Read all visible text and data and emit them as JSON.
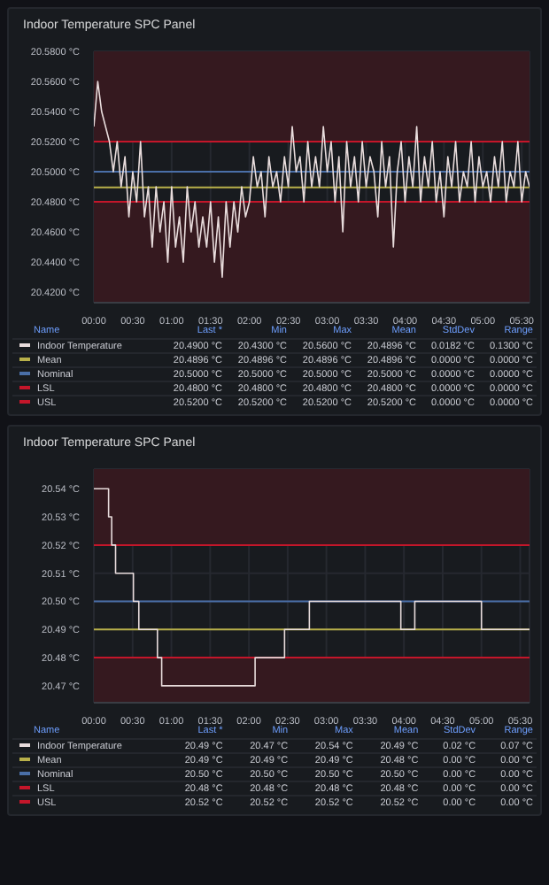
{
  "chart_data": [
    {
      "type": "line",
      "title": "Indoor Temperature SPC Panel",
      "xlim": [
        0,
        5.6
      ],
      "ylim": [
        20.413,
        20.58
      ],
      "xticks": [
        {
          "value": 0,
          "label": "00:00"
        },
        {
          "value": 0.5,
          "label": "00:30"
        },
        {
          "value": 1,
          "label": "01:00"
        },
        {
          "value": 1.5,
          "label": "01:30"
        },
        {
          "value": 2,
          "label": "02:00"
        },
        {
          "value": 2.5,
          "label": "02:30"
        },
        {
          "value": 3,
          "label": "03:00"
        },
        {
          "value": 3.5,
          "label": "03:30"
        },
        {
          "value": 4,
          "label": "04:00"
        },
        {
          "value": 4.5,
          "label": "04:30"
        },
        {
          "value": 5,
          "label": "05:00"
        },
        {
          "value": 5.5,
          "label": "05:30"
        }
      ],
      "yticks": [
        {
          "value": 20.42,
          "label": "20.4200 °C"
        },
        {
          "value": 20.44,
          "label": "20.4400 °C"
        },
        {
          "value": 20.46,
          "label": "20.4600 °C"
        },
        {
          "value": 20.48,
          "label": "20.4800 °C"
        },
        {
          "value": 20.5,
          "label": "20.5000 °C"
        },
        {
          "value": 20.52,
          "label": "20.5200 °C"
        },
        {
          "value": 20.54,
          "label": "20.5400 °C"
        },
        {
          "value": 20.56,
          "label": "20.5600 °C"
        },
        {
          "value": 20.58,
          "label": "20.5800 °C"
        }
      ],
      "grid": true,
      "legend": "bottom",
      "bands": [
        {
          "axis": "y",
          "from": 20.52,
          "to": 20.58,
          "color": "#35191f"
        },
        {
          "axis": "y",
          "from": 20.413,
          "to": 20.48,
          "color": "#35191f"
        }
      ],
      "series": [
        {
          "name": "Indoor Temperature",
          "color": "#e8dcdc",
          "x": [
            0,
            0.05,
            0.1,
            0.15,
            0.2,
            0.25,
            0.3,
            0.35,
            0.4,
            0.45,
            0.5,
            0.55,
            0.6,
            0.65,
            0.7,
            0.75,
            0.8,
            0.85,
            0.9,
            0.95,
            1,
            1.05,
            1.1,
            1.15,
            1.2,
            1.25,
            1.3,
            1.35,
            1.4,
            1.45,
            1.5,
            1.55,
            1.6,
            1.65,
            1.7,
            1.75,
            1.8,
            1.85,
            1.9,
            1.95,
            2,
            2.05,
            2.1,
            2.15,
            2.2,
            2.25,
            2.3,
            2.35,
            2.4,
            2.45,
            2.5,
            2.55,
            2.6,
            2.65,
            2.7,
            2.75,
            2.8,
            2.85,
            2.9,
            2.95,
            3,
            3.05,
            3.1,
            3.15,
            3.2,
            3.25,
            3.3,
            3.35,
            3.4,
            3.45,
            3.5,
            3.55,
            3.6,
            3.65,
            3.7,
            3.75,
            3.8,
            3.85,
            3.9,
            3.95,
            4,
            4.05,
            4.1,
            4.15,
            4.2,
            4.25,
            4.3,
            4.35,
            4.4,
            4.45,
            4.5,
            4.55,
            4.6,
            4.65,
            4.7,
            4.75,
            4.8,
            4.85,
            4.9,
            4.95,
            5,
            5.05,
            5.1,
            5.15,
            5.2,
            5.25,
            5.3,
            5.35,
            5.4,
            5.45,
            5.5,
            5.55,
            5.6
          ],
          "values": [
            20.53,
            20.56,
            20.54,
            20.53,
            20.52,
            20.5,
            20.52,
            20.49,
            20.51,
            20.47,
            20.5,
            20.48,
            20.52,
            20.47,
            20.49,
            20.45,
            20.49,
            20.46,
            20.48,
            20.44,
            20.49,
            20.45,
            20.47,
            20.44,
            20.49,
            20.46,
            20.48,
            20.45,
            20.47,
            20.45,
            20.48,
            20.44,
            20.47,
            20.43,
            20.48,
            20.45,
            20.48,
            20.46,
            20.49,
            20.47,
            20.48,
            20.51,
            20.49,
            20.5,
            20.47,
            20.51,
            20.49,
            20.5,
            20.48,
            20.51,
            20.49,
            20.53,
            20.5,
            20.51,
            20.48,
            20.52,
            20.49,
            20.51,
            20.49,
            20.53,
            20.5,
            20.52,
            20.48,
            20.51,
            20.46,
            20.52,
            20.49,
            20.51,
            20.48,
            20.52,
            20.49,
            20.51,
            20.5,
            20.47,
            20.52,
            20.49,
            20.51,
            20.45,
            20.5,
            20.52,
            20.48,
            20.51,
            20.49,
            20.53,
            20.48,
            20.51,
            20.49,
            20.52,
            20.48,
            20.5,
            20.47,
            20.51,
            20.49,
            20.52,
            20.48,
            20.5,
            20.49,
            20.52,
            20.48,
            20.51,
            20.49,
            20.5,
            20.48,
            20.51,
            20.49,
            20.52,
            20.48,
            20.5,
            20.49,
            20.52,
            20.48,
            20.5,
            20.49
          ]
        },
        {
          "name": "Mean",
          "color": "#b8b04a",
          "x": [
            0,
            5.6
          ],
          "values": [
            20.4896,
            20.4896
          ]
        },
        {
          "name": "Nominal",
          "color": "#4a6fa8",
          "x": [
            0,
            5.6
          ],
          "values": [
            20.5,
            20.5
          ]
        },
        {
          "name": "LSL",
          "color": "#c4162a",
          "x": [
            0,
            5.6
          ],
          "values": [
            20.48,
            20.48
          ]
        },
        {
          "name": "USL",
          "color": "#c4162a",
          "x": [
            0,
            5.6
          ],
          "values": [
            20.52,
            20.52
          ]
        }
      ],
      "annotations": [
        "Name",
        "Last *",
        "Min",
        "Max",
        "Mean",
        "StdDev",
        "Range",
        "20.4900 °C",
        "20.4300 °C",
        "20.5600 °C",
        "20.4896 °C",
        "0.0182 °C",
        "0.1300 °C",
        "20.4896 °C",
        "20.4896 °C",
        "20.4896 °C",
        "20.4896 °C",
        "0.0000 °C",
        "0.0000 °C",
        "20.5000 °C",
        "20.5000 °C",
        "20.5000 °C",
        "20.5000 °C",
        "0.0000 °C",
        "0.0000 °C",
        "20.4800 °C",
        "20.4800 °C",
        "20.4800 °C",
        "20.4800 °C",
        "0.0000 °C",
        "0.0000 °C",
        "20.5200 °C",
        "20.5200 °C",
        "20.5200 °C",
        "20.5200 °C",
        "0.0000 °C",
        "0.0000 °C"
      ]
    },
    {
      "type": "step",
      "title": "Indoor Temperature SPC Panel",
      "xlim": [
        0,
        5.62
      ],
      "ylim": [
        20.464,
        20.547
      ],
      "xticks": [
        {
          "value": 0,
          "label": "00:00"
        },
        {
          "value": 0.5,
          "label": "00:30"
        },
        {
          "value": 1,
          "label": "01:00"
        },
        {
          "value": 1.5,
          "label": "01:30"
        },
        {
          "value": 2,
          "label": "02:00"
        },
        {
          "value": 2.5,
          "label": "02:30"
        },
        {
          "value": 3,
          "label": "03:00"
        },
        {
          "value": 3.5,
          "label": "03:30"
        },
        {
          "value": 4,
          "label": "04:00"
        },
        {
          "value": 4.5,
          "label": "04:30"
        },
        {
          "value": 5,
          "label": "05:00"
        },
        {
          "value": 5.5,
          "label": "05:30"
        }
      ],
      "yticks": [
        {
          "value": 20.47,
          "label": "20.47 °C"
        },
        {
          "value": 20.48,
          "label": "20.48 °C"
        },
        {
          "value": 20.49,
          "label": "20.49 °C"
        },
        {
          "value": 20.5,
          "label": "20.50 °C"
        },
        {
          "value": 20.51,
          "label": "20.51 °C"
        },
        {
          "value": 20.52,
          "label": "20.52 °C"
        },
        {
          "value": 20.53,
          "label": "20.53 °C"
        },
        {
          "value": 20.54,
          "label": "20.54 °C"
        }
      ],
      "grid": true,
      "legend": "bottom",
      "bands": [
        {
          "axis": "y",
          "from": 20.52,
          "to": 20.547,
          "color": "#35191f"
        },
        {
          "axis": "y",
          "from": 20.464,
          "to": 20.48,
          "color": "#35191f"
        }
      ],
      "series": [
        {
          "name": "Indoor Temperature",
          "color": "#e8dcdc",
          "x": [
            0,
            0.19,
            0.23,
            0.28,
            0.51,
            0.58,
            0.82,
            0.875,
            2.08,
            2.46,
            2.78,
            3.96,
            4.14,
            5.0,
            5.62
          ],
          "values": [
            20.54,
            20.53,
            20.52,
            20.51,
            20.5,
            20.49,
            20.48,
            20.47,
            20.48,
            20.49,
            20.5,
            20.49,
            20.5,
            20.49,
            20.49
          ]
        },
        {
          "name": "Mean",
          "color": "#b8b04a",
          "x": [
            0,
            5.62
          ],
          "values": [
            20.49,
            20.49
          ]
        },
        {
          "name": "Nominal",
          "color": "#4a6fa8",
          "x": [
            0,
            5.62
          ],
          "values": [
            20.5,
            20.5
          ]
        },
        {
          "name": "LSL",
          "color": "#c4162a",
          "x": [
            0,
            5.62
          ],
          "values": [
            20.48,
            20.48
          ]
        },
        {
          "name": "USL",
          "color": "#c4162a",
          "x": [
            0,
            5.62
          ],
          "values": [
            20.52,
            20.52
          ]
        }
      ],
      "annotations": [
        "Name",
        "Last *",
        "Min",
        "Max",
        "Mean",
        "StdDev",
        "Range",
        "20.49 °C",
        "20.47 °C",
        "20.54 °C",
        "20.49 °C",
        "0.02 °C",
        "0.07 °C",
        "20.49 °C",
        "20.49 °C",
        "20.49 °C",
        "20.48 °C",
        "0.00 °C",
        "0.00 °C",
        "20.50 °C",
        "20.50 °C",
        "20.50 °C",
        "20.50 °C",
        "0.00 °C",
        "0.00 °C",
        "20.48 °C",
        "20.48 °C",
        "20.48 °C",
        "20.48 °C",
        "0.00 °C",
        "0.00 °C",
        "20.52 °C",
        "20.52 °C",
        "20.52 °C",
        "20.52 °C",
        "0.00 °C",
        "0.00 °C"
      ]
    }
  ]
}
